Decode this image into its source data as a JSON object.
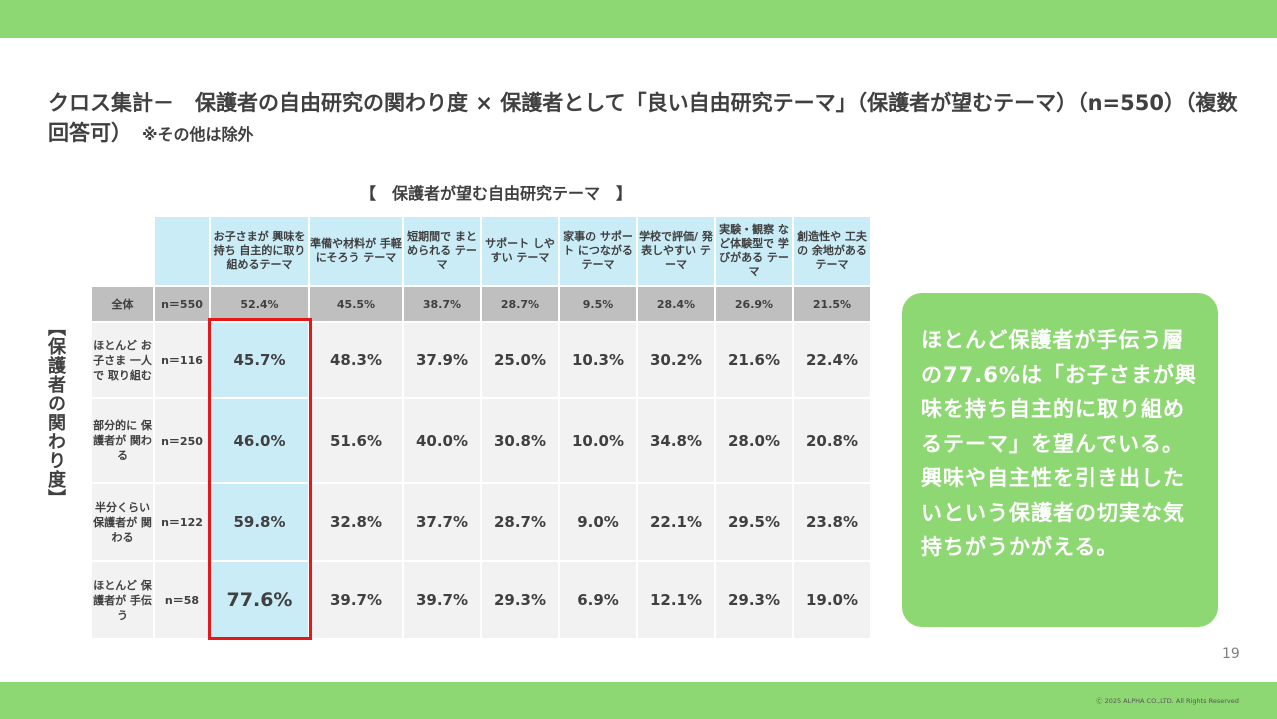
{
  "title": {
    "main": "クロス集計－　保護者の自由研究の関わり度 × 保護者として「良い自由研究テーマ」（保護者が望むテーマ）（n=550）（複数回答可）",
    "note": "※その他は除外"
  },
  "table_title": "【　保護者が望む自由研究テーマ　】",
  "row_axis_label": "【保護者の関わり度】",
  "columns": [
    "お子さまが 興味を持ち 自主的に取り 組めるテーマ",
    "準備や材料が 手軽にそろう テーマ",
    "短期間で まとめられる テーマ",
    "サポート しやすい テーマ",
    "家事の サポート につながる テーマ",
    "学校で評価/ 発表しやすい テーマ",
    "実験・観察 など体験型で 学びがある テーマ",
    "創造性や 工夫の 余地がある テーマ"
  ],
  "total_row": {
    "label": "全体",
    "n": "n＝550",
    "values": [
      "52.4%",
      "45.5%",
      "38.7%",
      "28.7%",
      "9.5%",
      "28.4%",
      "26.9%",
      "21.5%"
    ]
  },
  "rows": [
    {
      "label": "ほとんど お子さま 一人で 取り組む",
      "n": "n＝116",
      "values": [
        "45.7%",
        "48.3%",
        "37.9%",
        "25.0%",
        "10.3%",
        "30.2%",
        "21.6%",
        "22.4%"
      ]
    },
    {
      "label": "部分的に 保護者が 関わる",
      "n": "n＝250",
      "values": [
        "46.0%",
        "51.6%",
        "40.0%",
        "30.8%",
        "10.0%",
        "34.8%",
        "28.0%",
        "20.8%"
      ]
    },
    {
      "label": "半分くらい 保護者が 関わる",
      "n": "n＝122",
      "values": [
        "59.8%",
        "32.8%",
        "37.7%",
        "28.7%",
        "9.0%",
        "22.1%",
        "29.5%",
        "23.8%"
      ]
    },
    {
      "label": "ほとんど 保護者が 手伝う",
      "n": "n＝58",
      "values": [
        "77.6%",
        "39.7%",
        "39.7%",
        "29.3%",
        "6.9%",
        "12.1%",
        "29.3%",
        "19.0%"
      ]
    }
  ],
  "callout": "ほとんど保護者が手伝う層の77.6%は「お子さまが興味を持ち自主的に取り組めるテーマ」を望んでいる。興味や自主性を引き出したいという保護者の切実な気持ちがうかがえる。",
  "page_number": "19",
  "copyright": "Ⓒ 2025 ALPHA CO.,LTD. All Rights Reserved",
  "colors": {
    "accent_green": "#8ed873",
    "header_blue": "#c9ecf7",
    "highlight_red": "#e31818",
    "total_gray": "#bfbfbf",
    "cell_gray": "#f2f2f2"
  }
}
